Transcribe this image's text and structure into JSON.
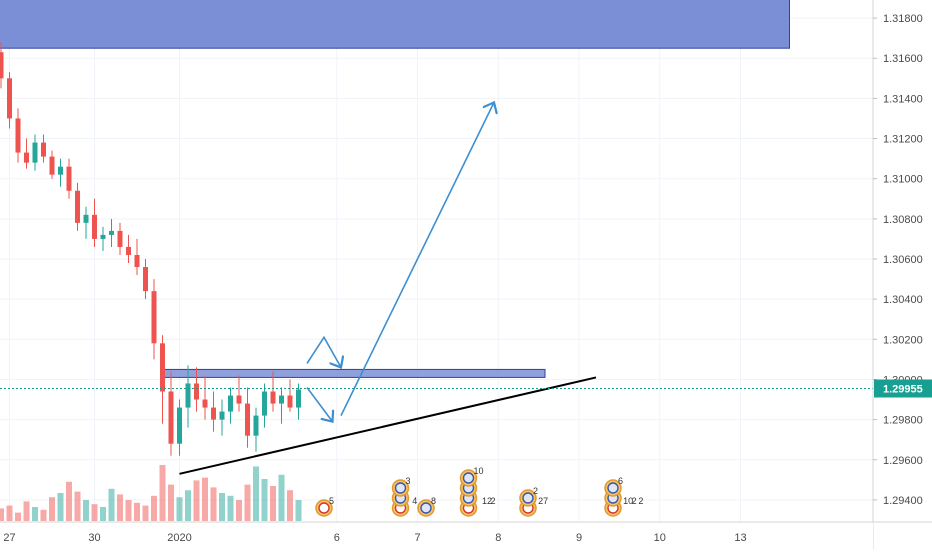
{
  "chart_data": {
    "type": "candlestick",
    "title": "",
    "grid": true,
    "y_axis": {
      "position": "right",
      "range": [
        1.293,
        1.319
      ],
      "ticks": [
        "1.31800",
        "1.31600",
        "1.31400",
        "1.31200",
        "1.31000",
        "1.30800",
        "1.30600",
        "1.30400",
        "1.30200",
        "1.30000",
        "1.29800",
        "1.29600",
        "1.29400"
      ]
    },
    "x_axis": {
      "ticks": [
        {
          "label": "27",
          "x": 1
        },
        {
          "label": "30",
          "x": 11
        },
        {
          "label": "2020",
          "x": 21
        },
        {
          "label": "6",
          "x": 39.5
        },
        {
          "label": "7",
          "x": 49
        },
        {
          "label": "8",
          "x": 58.5
        },
        {
          "label": "9",
          "x": 68
        },
        {
          "label": "10",
          "x": 77.5
        },
        {
          "label": "13",
          "x": 87
        }
      ]
    },
    "current_price": {
      "value": 1.29955,
      "label": "1.29955"
    },
    "bull_color": "#26a69a",
    "bear_color": "#ef5350",
    "candles_note": "index = bar number along time axis; o,h,l,c = price",
    "candles": [
      {
        "i": 0,
        "o": 1.3163,
        "h": 1.3168,
        "l": 1.3145,
        "c": 1.315
      },
      {
        "i": 1,
        "o": 1.315,
        "h": 1.3153,
        "l": 1.3125,
        "c": 1.313
      },
      {
        "i": 2,
        "o": 1.313,
        "h": 1.3135,
        "l": 1.3108,
        "c": 1.3113
      },
      {
        "i": 3,
        "o": 1.3113,
        "h": 1.312,
        "l": 1.3105,
        "c": 1.3108
      },
      {
        "i": 4,
        "o": 1.3108,
        "h": 1.3122,
        "l": 1.3104,
        "c": 1.3118
      },
      {
        "i": 5,
        "o": 1.3118,
        "h": 1.3122,
        "l": 1.3108,
        "c": 1.3111
      },
      {
        "i": 6,
        "o": 1.3111,
        "h": 1.3114,
        "l": 1.31,
        "c": 1.3102
      },
      {
        "i": 7,
        "o": 1.3102,
        "h": 1.311,
        "l": 1.3096,
        "c": 1.3106
      },
      {
        "i": 8,
        "o": 1.3106,
        "h": 1.311,
        "l": 1.309,
        "c": 1.3094
      },
      {
        "i": 9,
        "o": 1.3094,
        "h": 1.3098,
        "l": 1.3074,
        "c": 1.3078
      },
      {
        "i": 10,
        "o": 1.3078,
        "h": 1.3086,
        "l": 1.307,
        "c": 1.3082
      },
      {
        "i": 11,
        "o": 1.3082,
        "h": 1.309,
        "l": 1.3066,
        "c": 1.307
      },
      {
        "i": 12,
        "o": 1.307,
        "h": 1.3076,
        "l": 1.3064,
        "c": 1.3072
      },
      {
        "i": 13,
        "o": 1.3072,
        "h": 1.308,
        "l": 1.3066,
        "c": 1.3074
      },
      {
        "i": 14,
        "o": 1.3074,
        "h": 1.3078,
        "l": 1.3062,
        "c": 1.3066
      },
      {
        "i": 15,
        "o": 1.3066,
        "h": 1.3072,
        "l": 1.3058,
        "c": 1.3062
      },
      {
        "i": 16,
        "o": 1.3062,
        "h": 1.307,
        "l": 1.3052,
        "c": 1.3056
      },
      {
        "i": 17,
        "o": 1.3056,
        "h": 1.306,
        "l": 1.304,
        "c": 1.3044
      },
      {
        "i": 18,
        "o": 1.3044,
        "h": 1.305,
        "l": 1.301,
        "c": 1.3018
      },
      {
        "i": 19,
        "o": 1.3018,
        "h": 1.3022,
        "l": 1.2978,
        "c": 1.2994
      },
      {
        "i": 20,
        "o": 1.2994,
        "h": 1.3004,
        "l": 1.2962,
        "c": 1.2968
      },
      {
        "i": 21,
        "o": 1.2968,
        "h": 1.299,
        "l": 1.2962,
        "c": 1.2986
      },
      {
        "i": 22,
        "o": 1.2986,
        "h": 1.3007,
        "l": 1.2976,
        "c": 1.2998
      },
      {
        "i": 23,
        "o": 1.2998,
        "h": 1.3006,
        "l": 1.2984,
        "c": 1.299
      },
      {
        "i": 24,
        "o": 1.299,
        "h": 1.3002,
        "l": 1.298,
        "c": 1.2986
      },
      {
        "i": 25,
        "o": 1.2986,
        "h": 1.2994,
        "l": 1.2974,
        "c": 1.298
      },
      {
        "i": 26,
        "o": 1.298,
        "h": 1.299,
        "l": 1.2972,
        "c": 1.2984
      },
      {
        "i": 27,
        "o": 1.2984,
        "h": 1.2996,
        "l": 1.2978,
        "c": 1.2992
      },
      {
        "i": 28,
        "o": 1.2992,
        "h": 1.3002,
        "l": 1.2984,
        "c": 1.2988
      },
      {
        "i": 29,
        "o": 1.2988,
        "h": 1.2996,
        "l": 1.2966,
        "c": 1.2972
      },
      {
        "i": 30,
        "o": 1.2972,
        "h": 1.2986,
        "l": 1.2964,
        "c": 1.2982
      },
      {
        "i": 31,
        "o": 1.2982,
        "h": 1.2998,
        "l": 1.2976,
        "c": 1.2994
      },
      {
        "i": 32,
        "o": 1.2994,
        "h": 1.3004,
        "l": 1.2984,
        "c": 1.2988
      },
      {
        "i": 33,
        "o": 1.2988,
        "h": 1.2996,
        "l": 1.2978,
        "c": 1.2992
      },
      {
        "i": 34,
        "o": 1.2992,
        "h": 1.3,
        "l": 1.2984,
        "c": 1.2986
      },
      {
        "i": 35,
        "o": 1.2986,
        "h": 1.2998,
        "l": 1.298,
        "c": 1.2995
      }
    ],
    "volume_note": "relative volume per bar, 0..1",
    "volume": [
      0.18,
      0.22,
      0.12,
      0.28,
      0.2,
      0.16,
      0.34,
      0.4,
      0.56,
      0.42,
      0.3,
      0.24,
      0.2,
      0.46,
      0.38,
      0.3,
      0.26,
      0.22,
      0.36,
      0.8,
      0.52,
      0.34,
      0.44,
      0.58,
      0.62,
      0.48,
      0.4,
      0.36,
      0.3,
      0.52,
      0.78,
      0.6,
      0.5,
      0.66,
      0.44,
      0.3
    ],
    "annotations": {
      "resistance_zone": {
        "y_top": 1.3005,
        "y_bottom": 1.3002,
        "x_start": 19,
        "x_end": 64
      },
      "top_zone": {
        "y_top": 1.319,
        "y_bottom": 1.3165,
        "x_start": 0,
        "x_end": 93
      },
      "trendline": {
        "from": [
          21,
          1.2953
        ],
        "to": [
          70,
          1.3001
        ]
      },
      "path_down": [
        [
          36,
          1.2996
        ],
        [
          39,
          1.2979
        ]
      ],
      "path_up_small": [
        [
          36,
          1.3008
        ],
        [
          38,
          1.3021
        ],
        [
          40,
          1.3006
        ]
      ],
      "path_up_big": [
        [
          40,
          1.2982
        ],
        [
          58,
          1.3138
        ]
      ]
    },
    "economic_events": [
      {
        "x": 38,
        "flags": [
          "ca"
        ],
        "count": "5"
      },
      {
        "x": 47,
        "flags": [
          "ca",
          "us",
          "us"
        ],
        "count": "3"
      },
      {
        "x": 47.8,
        "flags": [],
        "count": "4"
      },
      {
        "x": 50,
        "flags": [
          "us"
        ],
        "count": "8"
      },
      {
        "x": 55,
        "flags": [
          "ca",
          "us",
          "us",
          "us"
        ],
        "count": "10"
      },
      {
        "x": 56,
        "flags": [],
        "count": "12"
      },
      {
        "x": 57,
        "flags": [],
        "count": "2"
      },
      {
        "x": 62,
        "flags": [
          "ca",
          "us"
        ],
        "count": "2"
      },
      {
        "x": 62.6,
        "flags": [],
        "count": "27"
      },
      {
        "x": 72,
        "flags": [
          "ca",
          "us",
          "us"
        ],
        "count": "6"
      },
      {
        "x": 72.6,
        "flags": [],
        "count": "10"
      },
      {
        "x": 73.6,
        "flags": [],
        "count": "2"
      },
      {
        "x": 74.4,
        "flags": [],
        "count": "2"
      }
    ],
    "colors": {
      "zone_fill": "#7b8fd6",
      "zone_stroke": "#2f3fa8",
      "arrow": "#3d8fd1",
      "trendline": "#000000",
      "price_line": "#1a9e8c",
      "price_label_bg": "#17a092",
      "axis_border": "#d6d6d6",
      "grid": "#f0f3fa"
    }
  }
}
